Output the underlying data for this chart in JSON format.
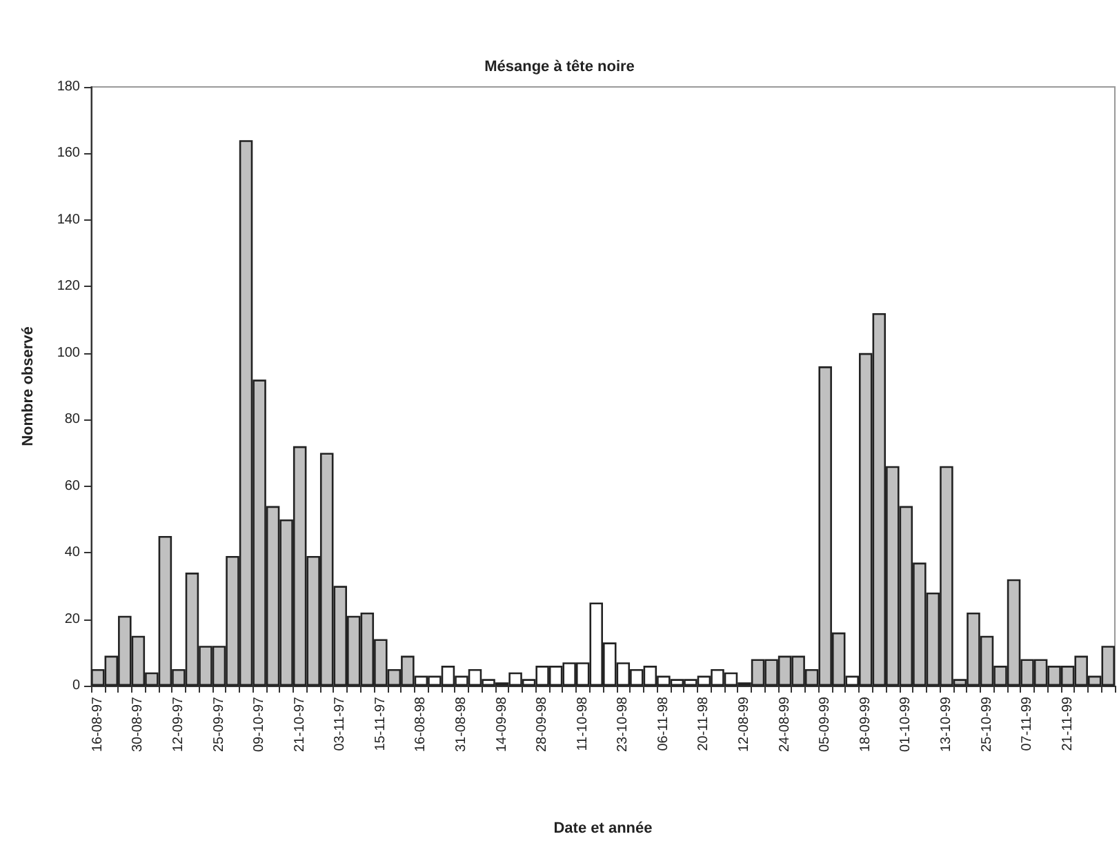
{
  "chart_data": {
    "type": "bar",
    "title": "Mésange à tête noire",
    "xlabel": "Date et année",
    "ylabel": "Nombre observé",
    "categories": [
      "16-08-97",
      null,
      null,
      "30-08-97",
      null,
      null,
      "12-09-97",
      null,
      null,
      "25-09-97",
      null,
      null,
      "09-10-97",
      null,
      null,
      "21-10-97",
      null,
      null,
      "03-11-97",
      null,
      null,
      "15-11-97",
      null,
      null,
      "16-08-98",
      null,
      null,
      "31-08-98",
      null,
      null,
      "14-09-98",
      null,
      null,
      "28-09-98",
      null,
      null,
      "11-10-98",
      null,
      null,
      "23-10-98",
      null,
      null,
      "06-11-98",
      null,
      null,
      "20-11-98",
      null,
      null,
      "12-08-99",
      null,
      null,
      "24-08-99",
      null,
      null,
      "05-09-99",
      null,
      null,
      "18-09-99",
      null,
      null,
      "01-10-99",
      null,
      null,
      "13-10-99",
      null,
      null,
      "25-10-99",
      null,
      null,
      "07-11-99",
      null,
      null,
      "21-11-99",
      null,
      null,
      null
    ],
    "values": [
      5,
      9,
      21,
      15,
      4,
      45,
      5,
      34,
      12,
      12,
      39,
      164,
      92,
      54,
      50,
      72,
      39,
      70,
      30,
      21,
      22,
      14,
      5,
      9,
      3,
      3,
      6,
      3,
      5,
      2,
      1,
      4,
      2,
      6,
      6,
      7,
      7,
      25,
      13,
      7,
      5,
      6,
      3,
      2,
      2,
      3,
      5,
      4,
      1,
      8,
      8,
      9,
      9,
      5,
      96,
      16,
      3,
      100,
      112,
      66,
      54,
      37,
      28,
      66,
      2,
      22,
      15,
      6,
      32,
      8,
      8,
      6,
      6,
      9,
      3,
      12
    ],
    "colors": [
      "#c0c0c0",
      "#c0c0c0",
      "#c0c0c0",
      "#c0c0c0",
      "#c0c0c0",
      "#c0c0c0",
      "#c0c0c0",
      "#c0c0c0",
      "#c0c0c0",
      "#c0c0c0",
      "#c0c0c0",
      "#c0c0c0",
      "#c0c0c0",
      "#c0c0c0",
      "#c0c0c0",
      "#c0c0c0",
      "#c0c0c0",
      "#c0c0c0",
      "#c0c0c0",
      "#c0c0c0",
      "#c0c0c0",
      "#c0c0c0",
      "#c0c0c0",
      "#c0c0c0",
      "#ffffff",
      "#ffffff",
      "#ffffff",
      "#ffffff",
      "#ffffff",
      "#ffffff",
      "#ffffff",
      "#ffffff",
      "#ffffff",
      "#ffffff",
      "#ffffff",
      "#ffffff",
      "#ffffff",
      "#ffffff",
      "#ffffff",
      "#ffffff",
      "#ffffff",
      "#ffffff",
      "#ffffff",
      "#ffffff",
      "#ffffff",
      "#ffffff",
      "#ffffff",
      "#ffffff",
      "#ffffff",
      "#c0c0c0",
      "#c0c0c0",
      "#c0c0c0",
      "#c0c0c0",
      "#c0c0c0",
      "#c0c0c0",
      "#c0c0c0",
      "#ffffff",
      "#c0c0c0",
      "#c0c0c0",
      "#c0c0c0",
      "#c0c0c0",
      "#c0c0c0",
      "#c0c0c0",
      "#c0c0c0",
      "#c0c0c0",
      "#c0c0c0",
      "#c0c0c0",
      "#c0c0c0",
      "#c0c0c0",
      "#c0c0c0",
      "#c0c0c0",
      "#c0c0c0",
      "#c0c0c0",
      "#c0c0c0",
      "#c0c0c0",
      "#c0c0c0"
    ],
    "ylim": [
      0,
      180
    ],
    "yticks": [
      0,
      20,
      40,
      60,
      80,
      100,
      120,
      140,
      160,
      180
    ],
    "grid": false
  }
}
